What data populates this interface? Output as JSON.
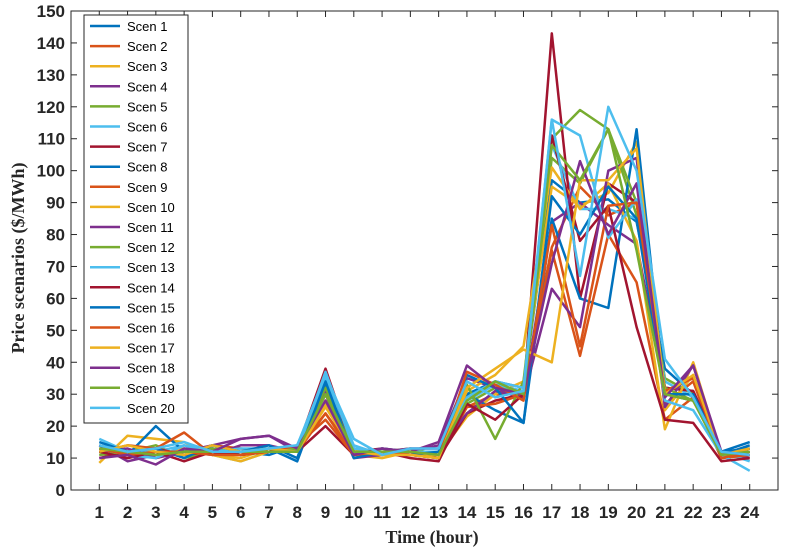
{
  "chart_data": {
    "type": "line",
    "title": "",
    "xlabel": "Time (hour)",
    "ylabel": "Price scenarios ($/MWh)",
    "x": [
      1,
      2,
      3,
      4,
      5,
      6,
      7,
      8,
      9,
      10,
      11,
      12,
      13,
      14,
      15,
      16,
      17,
      18,
      19,
      20,
      21,
      22,
      23,
      24
    ],
    "xlim": [
      0,
      25
    ],
    "ylim": [
      0,
      150
    ],
    "yticks": [
      0,
      10,
      20,
      30,
      40,
      50,
      60,
      70,
      80,
      90,
      100,
      110,
      120,
      130,
      140,
      150
    ],
    "grid": false,
    "legend_position": "top-left",
    "colors": [
      "#0072BD",
      "#D95319",
      "#EDB120",
      "#7E2F8E",
      "#77AC30",
      "#4DBEEE",
      "#A2142F"
    ],
    "series": [
      {
        "name": "Scen 1",
        "values": [
          14,
          12,
          13,
          11,
          13,
          12,
          11,
          14,
          34,
          12,
          11,
          12,
          11,
          30,
          34,
          32,
          97,
          90,
          91,
          84,
          38,
          30,
          11,
          14
        ]
      },
      {
        "name": "Scen 2",
        "values": [
          12,
          11,
          12,
          12,
          14,
          13,
          12,
          13,
          24,
          11,
          12,
          11,
          10,
          26,
          30,
          30,
          76,
          95,
          86,
          90,
          27,
          34,
          10,
          12
        ]
      },
      {
        "name": "Scen 3",
        "values": [
          8.5,
          17,
          16,
          15,
          11,
          10,
          13,
          12,
          28,
          11,
          10,
          12,
          11,
          23,
          30,
          34,
          95,
          89,
          93,
          109,
          25,
          36,
          11,
          13
        ]
      },
      {
        "name": "Scen 4",
        "values": [
          14,
          9,
          11,
          12,
          11,
          14,
          14,
          12,
          30,
          10,
          11,
          12,
          14,
          35,
          32,
          29,
          84,
          90,
          83,
          77,
          32,
          31,
          12,
          10
        ]
      },
      {
        "name": "Scen 5",
        "values": [
          11,
          12,
          14,
          10,
          12,
          11,
          13,
          13,
          30,
          13,
          12,
          13,
          11,
          27,
          32,
          31,
          104,
          96,
          113,
          86,
          35,
          30,
          10,
          11
        ]
      },
      {
        "name": "Scen 6",
        "values": [
          16,
          12,
          12,
          14,
          11,
          9,
          12,
          13,
          35,
          14,
          11,
          12,
          10,
          28,
          33,
          31,
          108,
          88,
          88,
          85,
          34,
          29,
          12,
          9
        ]
      },
      {
        "name": "Scen 7",
        "values": [
          10,
          12,
          13,
          11,
          12,
          11,
          12,
          13,
          38,
          12,
          13,
          12,
          10,
          24,
          28,
          30,
          143,
          60,
          96,
          90,
          32,
          31,
          11,
          12
        ]
      },
      {
        "name": "Scen 8",
        "values": [
          14,
          11,
          20,
          12,
          13,
          11,
          13,
          9,
          33,
          11,
          13,
          12,
          11,
          30,
          25,
          21,
          85,
          60,
          57,
          113,
          30,
          28,
          12,
          15
        ]
      },
      {
        "name": "Scen 9",
        "values": [
          12,
          14,
          13,
          18,
          11,
          11,
          13,
          12,
          24,
          12,
          11,
          12,
          11,
          26,
          27,
          30,
          75,
          42,
          80,
          65,
          22,
          29,
          10,
          11
        ]
      },
      {
        "name": "Scen 10",
        "values": [
          13,
          12,
          11,
          13,
          11,
          9,
          12,
          12,
          27,
          13,
          11,
          11,
          11,
          31,
          36,
          45,
          101,
          88,
          96,
          78,
          19,
          40,
          11,
          12
        ]
      },
      {
        "name": "Scen 11",
        "values": [
          12,
          13,
          10,
          12,
          14,
          16,
          17,
          12,
          31,
          12,
          12,
          13,
          13,
          24,
          31,
          29,
          63,
          51,
          100,
          104,
          26,
          39,
          11,
          13
        ]
      },
      {
        "name": "Scen 12",
        "values": [
          11,
          12,
          11,
          12,
          13,
          12,
          12,
          13,
          32,
          12,
          12,
          11,
          10,
          33,
          16,
          34,
          110,
          119,
          113,
          90,
          32,
          28,
          11,
          12
        ]
      },
      {
        "name": "Scen 13",
        "values": [
          13,
          11,
          10,
          14,
          12,
          13,
          13,
          12,
          37,
          13,
          12,
          12,
          12,
          29,
          34,
          32,
          116,
          111,
          79,
          91,
          28,
          25,
          11,
          6
        ]
      },
      {
        "name": "Scen 14",
        "values": [
          12,
          10,
          12,
          9,
          12,
          11,
          12,
          12,
          20,
          11,
          12,
          10,
          9,
          27,
          22,
          30,
          111,
          78,
          89,
          51,
          22,
          21,
          9,
          10
        ]
      },
      {
        "name": "Scen 15",
        "values": [
          15,
          12,
          13,
          10,
          14,
          12,
          14,
          10,
          34,
          10,
          12,
          11,
          12,
          36,
          32,
          21,
          92,
          80,
          95,
          85,
          30,
          30,
          12,
          13
        ]
      },
      {
        "name": "Scen 16",
        "values": [
          13,
          11,
          12,
          12,
          11,
          11,
          12,
          14,
          22,
          11,
          12,
          11,
          10,
          37,
          33,
          28,
          83,
          45,
          89,
          90,
          31,
          35,
          10,
          12
        ]
      },
      {
        "name": "Scen 17",
        "values": [
          12,
          14,
          12,
          11,
          14,
          12,
          13,
          12,
          26,
          12,
          11,
          11,
          10,
          32,
          38,
          44,
          40,
          97,
          97,
          107,
          30,
          36,
          11,
          13
        ]
      },
      {
        "name": "Scen 18",
        "values": [
          10,
          11,
          8,
          13,
          12,
          16,
          17,
          13,
          28,
          11,
          13,
          12,
          15,
          39,
          32,
          30,
          71,
          103,
          80,
          96,
          29,
          39,
          12,
          11
        ]
      },
      {
        "name": "Scen 19",
        "values": [
          13,
          12,
          11,
          12,
          12,
          12,
          12,
          12,
          30,
          12,
          12,
          12,
          11,
          28,
          34,
          30,
          108,
          97,
          113,
          75,
          30,
          28,
          11,
          12
        ]
      },
      {
        "name": "Scen 20",
        "values": [
          14,
          12,
          13,
          15,
          12,
          12,
          13,
          14,
          36,
          16,
          11,
          13,
          13,
          34,
          29,
          31,
          116,
          67,
          120,
          100,
          41,
          29,
          12,
          11
        ]
      }
    ]
  }
}
